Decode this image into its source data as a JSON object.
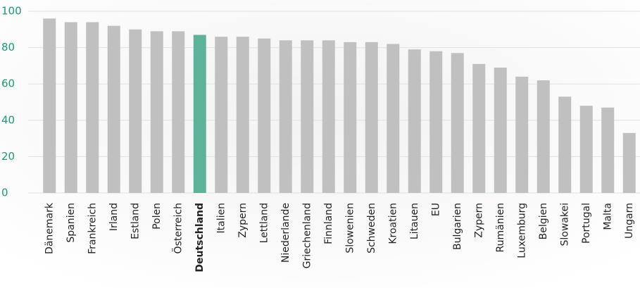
{
  "chart_data": {
    "type": "bar",
    "categories": [
      "Dänemark",
      "Spanien",
      "Frankreich",
      "Irland",
      "Estland",
      "Polen",
      "Österreich",
      "Deutschland",
      "Italien",
      "Zypern",
      "Lettland",
      "Niederlande",
      "Griechenland",
      "Finnland",
      "Slowenien",
      "Schweden",
      "Kroatien",
      "Litauen",
      "EU",
      "Bulgarien",
      "Zypern",
      "Rumänien",
      "Luxemburg",
      "Belgien",
      "Slowakei",
      "Portugal",
      "Malta",
      "Ungarn"
    ],
    "values": [
      96,
      94,
      94,
      92,
      90,
      89,
      89,
      87,
      86,
      86,
      85,
      84,
      84,
      84,
      83,
      83,
      82,
      79,
      78,
      77,
      71,
      69,
      64,
      62,
      53,
      48,
      47,
      33
    ],
    "colors": [
      "#c0c0c0",
      "#c0c0c0",
      "#c0c0c0",
      "#c0c0c0",
      "#c0c0c0",
      "#c0c0c0",
      "#c0c0c0",
      "#5db399",
      "#c0c0c0",
      "#c0c0c0",
      "#c0c0c0",
      "#c0c0c0",
      "#c0c0c0",
      "#c0c0c0",
      "#c0c0c0",
      "#c0c0c0",
      "#c0c0c0",
      "#c0c0c0",
      "#c0c0c0",
      "#c0c0c0",
      "#c0c0c0",
      "#c0c0c0",
      "#c0c0c0",
      "#c0c0c0",
      "#c0c0c0",
      "#c0c0c0",
      "#c0c0c0",
      "#c0c0c0"
    ],
    "ylim": [
      0,
      100
    ],
    "yticks": [
      0,
      20,
      40,
      60,
      80,
      100
    ],
    "grid": true
  }
}
